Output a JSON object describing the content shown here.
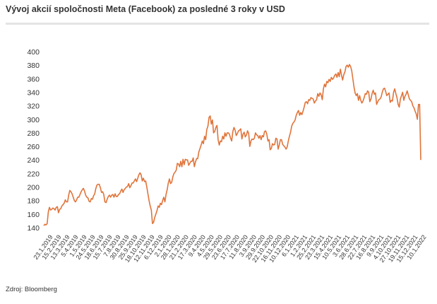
{
  "title": "Vývoj akcií spoločnosti Meta (Facebook) za posledné 3 roky v USD",
  "source": "Zdroj: Bloomberg",
  "chart_data": {
    "type": "line",
    "title": "Vývoj akcií spoločnosti Meta (Facebook) za posledné 3 roky v USD",
    "xlabel": "",
    "ylabel": "",
    "ylim": [
      140,
      400
    ],
    "y_ticks": [
      140,
      160,
      180,
      200,
      220,
      240,
      260,
      280,
      300,
      320,
      340,
      360,
      380,
      400
    ],
    "grid": false,
    "legend": "none",
    "line_color": "#e0743a",
    "x_tick_labels": [
      "23.1.2019",
      "15.2.2019",
      "13.3.2019",
      "5.4.2019",
      "1.5.2019",
      "24.5.2019",
      "18.6.2019",
      "15.7.2019",
      "7.8.2019",
      "30.8.2019",
      "25.9.2019",
      "18.10.2019",
      "12.11.2019",
      "6.12.2019",
      "2.1.2020",
      "28.1.2020",
      "21.2.2020",
      "17.3.2020",
      "9.4.2020",
      "4.5.2020",
      "29.5.2020",
      "23.6.2020",
      "17.7.2020",
      "11.8.2020",
      "3.9.2020",
      "29.9.2020",
      "22.10.2020",
      "16.11.2020",
      "10.12.2020",
      "6.1.2021",
      "1.2.2021",
      "25.2.2021",
      "23.3.2021",
      "15.4.2021",
      "10.5.2021",
      "3.6.2021",
      "28.6.2021",
      "22.7.2021",
      "16.8.2021",
      "9.9.2021",
      "4.10.2021",
      "27.10.2021",
      "19.11.2021",
      "15.12.2021",
      "10.1.2022"
    ],
    "series": [
      {
        "values": [
          143,
          145,
          144,
          146,
          163,
          170,
          166,
          167,
          169,
          168,
          166,
          170,
          171,
          162,
          167,
          168,
          172,
          174,
          176,
          181,
          178,
          178,
          188,
          195,
          193,
          190,
          185,
          180,
          178,
          181,
          185,
          185,
          189,
          193,
          196,
          198,
          194,
          188,
          185,
          184,
          179,
          178,
          183,
          182,
          187,
          190,
          198,
          203,
          204,
          204,
          199,
          192,
          193,
          189,
          178,
          177,
          182,
          186,
          188,
          185,
          188,
          189,
          185,
          190,
          186,
          186,
          189,
          190,
          194,
          197,
          192,
          196,
          198,
          200,
          201,
          205,
          199,
          202,
          206,
          206,
          209,
          212,
          208,
          213,
          218,
          221,
          218,
          209,
          213,
          208,
          209,
          200,
          190,
          180,
          172,
          166,
          146,
          148,
          155,
          160,
          165,
          172,
          170,
          176,
          174,
          180,
          185,
          178,
          189,
          196,
          206,
          212,
          205,
          207,
          215,
          220,
          222,
          225,
          235,
          234,
          230,
          238,
          230,
          241,
          233,
          241,
          240,
          240,
          232,
          235,
          238,
          238,
          243,
          230,
          237,
          242,
          242,
          252,
          257,
          262,
          268,
          264,
          275,
          270,
          285,
          290,
          303,
          305,
          293,
          299,
          280,
          282,
          288,
          291,
          270,
          262,
          268,
          267,
          275,
          271,
          280,
          275,
          280,
          280,
          278,
          272,
          268,
          282,
          288,
          284,
          276,
          279,
          283,
          284,
          286,
          271,
          278,
          281,
          274,
          277,
          283,
          279,
          260,
          268,
          271,
          270,
          272,
          280,
          277,
          276,
          272,
          276,
          270,
          276,
          274,
          282,
          283,
          278,
          268,
          270,
          255,
          257,
          264,
          262,
          263,
          272,
          271,
          256,
          262,
          270,
          270,
          263,
          261,
          259,
          256,
          259,
          268,
          275,
          281,
          290,
          294,
          296,
          299,
          306,
          310,
          313,
          306,
          310,
          307,
          312,
          318,
          325,
          326,
          323,
          329,
          328,
          332,
          331,
          330,
          324,
          327,
          329,
          338,
          334,
          339,
          336,
          329,
          345,
          352,
          348,
          356,
          354,
          359,
          356,
          362,
          359,
          361,
          365,
          367,
          362,
          369,
          363,
          374,
          365,
          358,
          366,
          370,
          378,
          380,
          377,
          381,
          378,
          372,
          360,
          348,
          339,
          335,
          338,
          328,
          335,
          328,
          324,
          327,
          332,
          338,
          337,
          342,
          340,
          326,
          330,
          338,
          343,
          337,
          339,
          322,
          326,
          329,
          330,
          333,
          340,
          345,
          346,
          341,
          335,
          337,
          339,
          325,
          328,
          327,
          340,
          345,
          338,
          332,
          322,
          318,
          330,
          335,
          340,
          328,
          334,
          337,
          342,
          336,
          330,
          328,
          326,
          320,
          317,
          312,
          308,
          300,
          322,
          322,
          240
        ]
      }
    ]
  }
}
